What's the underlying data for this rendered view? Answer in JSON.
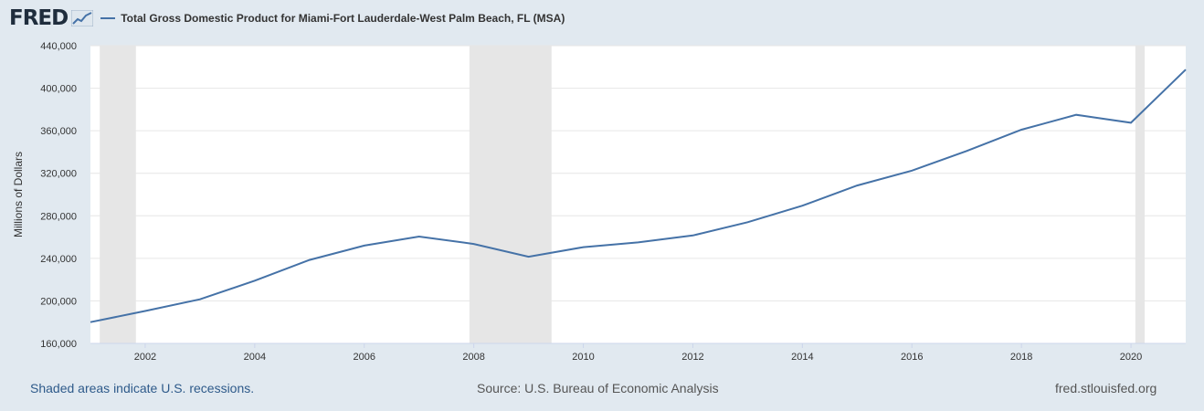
{
  "header": {
    "logo": "FRED",
    "legend": "Total Gross Domestic Product for Miami-Fort Lauderdale-West Palm Beach, FL (MSA)"
  },
  "footer": {
    "left": "Shaded areas indicate U.S. recessions.",
    "middle": "Source: U.S. Bureau of Economic Analysis",
    "right": "fred.stlouisfed.org"
  },
  "colors": {
    "line": "#4572a7",
    "recession": "#e6e6e6",
    "grid": "#e6e6e6"
  },
  "chart_data": {
    "type": "line",
    "title": "Total Gross Domestic Product for Miami-Fort Lauderdale-West Palm Beach, FL (MSA)",
    "xlabel": "",
    "ylabel": "Millions of Dollars",
    "xlim": [
      2001,
      2021
    ],
    "ylim": [
      160000,
      440000
    ],
    "yticks": [
      160000,
      200000,
      240000,
      280000,
      320000,
      360000,
      400000,
      440000
    ],
    "ytick_labels": [
      "160,000",
      "200,000",
      "240,000",
      "280,000",
      "320,000",
      "360,000",
      "400,000",
      "440,000"
    ],
    "xticks": [
      2002,
      2004,
      2006,
      2008,
      2010,
      2012,
      2014,
      2016,
      2018,
      2020
    ],
    "xtick_labels": [
      "2002",
      "2004",
      "2006",
      "2008",
      "2010",
      "2012",
      "2014",
      "2016",
      "2018",
      "2020"
    ],
    "recessions": [
      [
        2001.17,
        2001.83
      ],
      [
        2007.92,
        2009.42
      ],
      [
        2020.08,
        2020.25
      ]
    ],
    "series": [
      {
        "name": "Total Gross Domestic Product for Miami-Fort Lauderdale-West Palm Beach, FL (MSA)",
        "x": [
          2001,
          2002,
          2003,
          2004,
          2005,
          2006,
          2007,
          2008,
          2009,
          2010,
          2011,
          2012,
          2013,
          2014,
          2015,
          2016,
          2017,
          2018,
          2019,
          2020,
          2021
        ],
        "values": [
          180000,
          190500,
          201500,
          219000,
          238500,
          252000,
          260500,
          253500,
          241500,
          250500,
          255000,
          261500,
          274000,
          289500,
          308500,
          322500,
          341000,
          361000,
          375000,
          367500,
          417500
        ]
      }
    ]
  }
}
